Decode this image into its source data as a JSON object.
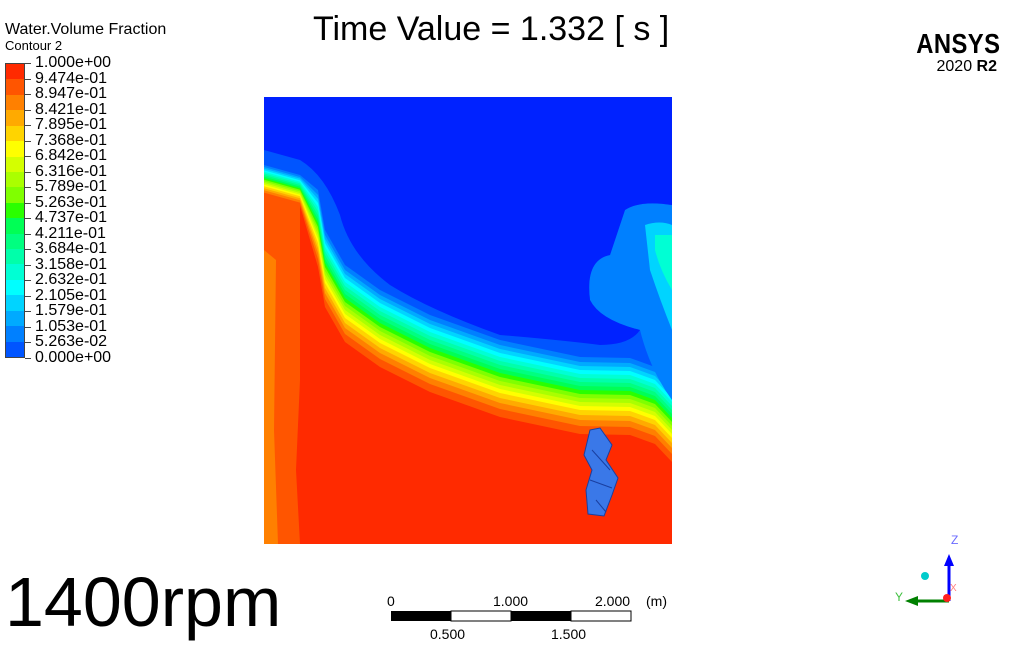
{
  "legend": {
    "title": "Water.Volume Fraction",
    "subtitle": "Contour 2",
    "labels": [
      "1.000e+00",
      "9.474e-01",
      "8.947e-01",
      "8.421e-01",
      "7.895e-01",
      "7.368e-01",
      "6.842e-01",
      "6.316e-01",
      "5.789e-01",
      "5.263e-01",
      "4.737e-01",
      "4.211e-01",
      "3.684e-01",
      "3.158e-01",
      "2.632e-01",
      "2.105e-01",
      "1.579e-01",
      "1.053e-01",
      "5.263e-02",
      "0.000e+00"
    ],
    "colors": [
      "#ff2a00",
      "#ff5500",
      "#ff8000",
      "#ffaa00",
      "#ffd400",
      "#ffff00",
      "#d4ff00",
      "#aaff00",
      "#80ff00",
      "#2aff00",
      "#00ff55",
      "#00ff80",
      "#00ffaa",
      "#00ffd4",
      "#00ffff",
      "#00d4ff",
      "#00aaff",
      "#0080ff",
      "#0055ff",
      "#0022ff"
    ]
  },
  "time_value": "Time Value = 1.332 [ s ]",
  "logo": {
    "brand": "ANSYS",
    "version": "2020",
    "release": "R2"
  },
  "annotation": "1400rpm",
  "scale": {
    "top_labels": [
      "0",
      "1.000",
      "2.000"
    ],
    "unit": "(m)",
    "bottom_labels": [
      "0.500",
      "1.500"
    ]
  },
  "axes": {
    "z": "Z",
    "y": "Y",
    "x": "X"
  }
}
